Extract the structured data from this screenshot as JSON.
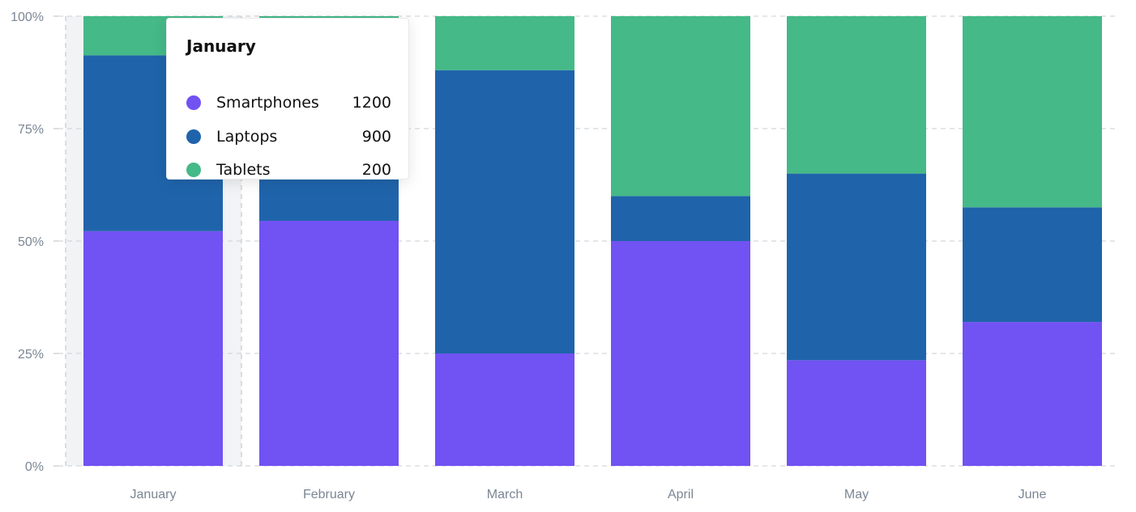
{
  "chart_data": {
    "type": "bar",
    "stacked": true,
    "normalized": true,
    "categories": [
      "January",
      "February",
      "March",
      "April",
      "May",
      "June"
    ],
    "series": [
      {
        "name": "Smartphones",
        "color": "#7152f3",
        "values": [
          52.2,
          54.5,
          25.0,
          50.0,
          23.5,
          32.0
        ]
      },
      {
        "name": "Laptops",
        "color": "#1f64ab",
        "values": [
          39.1,
          37.5,
          63.0,
          10.0,
          41.5,
          25.5
        ]
      },
      {
        "name": "Tablets",
        "color": "#45b987",
        "values": [
          8.7,
          8.0,
          12.0,
          40.0,
          35.0,
          42.5
        ]
      }
    ],
    "yticks": [
      "0%",
      "25%",
      "50%",
      "75%",
      "100%"
    ],
    "ylim": [
      0,
      100
    ],
    "grid": true,
    "highlighted_category": "January"
  },
  "tooltip": {
    "title": "January",
    "rows": [
      {
        "name": "Smartphones",
        "value": "1200",
        "color": "#7152f3"
      },
      {
        "name": "Laptops",
        "value": "900",
        "color": "#1f64ab"
      },
      {
        "name": "Tablets",
        "value": "200",
        "color": "#45b987"
      }
    ]
  }
}
